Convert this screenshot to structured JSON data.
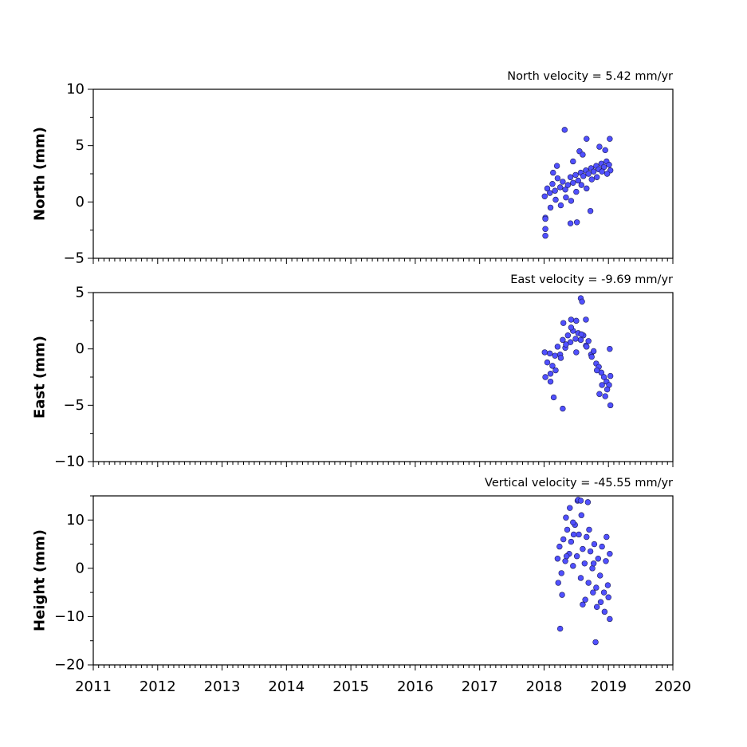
{
  "colors": {
    "marker_fill": "#5050ff",
    "marker_edge": "#1a1a55",
    "axes": "#000000"
  },
  "shared_x": {
    "xlim": [
      2011,
      2020
    ],
    "tick_labels": [
      "2011",
      "2012",
      "2013",
      "2014",
      "2015",
      "2016",
      "2017",
      "2018",
      "2019",
      "2020"
    ]
  },
  "chart_data": [
    {
      "type": "scatter",
      "title": "North velocity = 5.42 mm/yr",
      "ylabel": "North (mm)",
      "ylim": [
        -5,
        10
      ],
      "yticks": [
        -5,
        0,
        5,
        10
      ],
      "ytick_labels": [
        "−5",
        "0",
        "5",
        "10"
      ],
      "series": [
        {
          "x": [
            2018.01,
            2018.05,
            2018.09,
            2018.13,
            2018.17,
            2018.21,
            2018.25,
            2018.29,
            2018.33,
            2018.37,
            2018.41,
            2018.45,
            2018.49,
            2018.53,
            2018.57,
            2018.61,
            2018.65,
            2018.69,
            2018.73,
            2018.77,
            2018.81,
            2018.85,
            2018.89,
            2018.93,
            2018.97,
            2019.01,
            2019.03,
            2018.02,
            2018.1,
            2018.18,
            2018.26,
            2018.34,
            2018.42,
            2018.5,
            2018.58,
            2018.66,
            2018.74,
            2018.82,
            2018.9,
            2018.98,
            2018.32,
            2018.02,
            2018.02,
            2018.02,
            2018.41,
            2018.51,
            2018.72,
            2018.55,
            2018.66,
            2019.02,
            2018.2,
            2018.45,
            2018.6,
            2018.86,
            2018.95,
            2018.14
          ],
          "y": [
            0.5,
            1.2,
            0.8,
            1.6,
            1.0,
            2.1,
            1.3,
            1.8,
            1.1,
            1.5,
            2.2,
            1.7,
            2.4,
            1.9,
            2.6,
            2.3,
            2.8,
            2.5,
            3.0,
            2.7,
            3.2,
            2.9,
            3.4,
            3.1,
            3.6,
            3.3,
            2.8,
            -1.4,
            -0.5,
            0.2,
            -0.3,
            0.4,
            0.1,
            0.9,
            1.5,
            1.2,
            2.0,
            2.2,
            2.7,
            2.5,
            6.4,
            -3.0,
            -2.4,
            -1.5,
            -1.9,
            -1.8,
            -0.8,
            4.5,
            5.6,
            5.6,
            3.2,
            3.6,
            4.2,
            4.9,
            4.6,
            2.6
          ]
        }
      ]
    },
    {
      "type": "scatter",
      "title": "East velocity = -9.69 mm/yr",
      "ylabel": "East (mm)",
      "ylim": [
        -10,
        5
      ],
      "yticks": [
        -10,
        -5,
        0,
        5
      ],
      "ytick_labels": [
        "−10",
        "−5",
        "0",
        "5"
      ],
      "series": [
        {
          "x": [
            2018.01,
            2018.05,
            2018.09,
            2018.13,
            2018.17,
            2018.21,
            2018.25,
            2018.29,
            2018.33,
            2018.37,
            2018.41,
            2018.45,
            2018.49,
            2018.53,
            2018.57,
            2018.61,
            2018.65,
            2018.69,
            2018.73,
            2018.77,
            2018.81,
            2018.85,
            2018.89,
            2018.93,
            2018.97,
            2019.01,
            2019.03,
            2018.02,
            2018.1,
            2018.18,
            2018.26,
            2018.34,
            2018.42,
            2018.5,
            2018.58,
            2018.66,
            2018.74,
            2018.82,
            2018.9,
            2018.98,
            2018.57,
            2018.59,
            2018.29,
            2018.15,
            2019.03,
            2018.1,
            2018.86,
            2018.95,
            2019.02,
            2018.65,
            2018.42,
            2018.3,
            2018.5
          ],
          "y": [
            -0.3,
            -1.2,
            -0.4,
            -1.5,
            -0.6,
            0.2,
            -0.5,
            0.8,
            0.1,
            1.2,
            0.6,
            1.6,
            0.9,
            1.4,
            0.8,
            1.2,
            0.3,
            0.7,
            -0.5,
            -0.2,
            -1.3,
            -1.6,
            -2.1,
            -2.5,
            -2.9,
            -3.2,
            -2.4,
            -2.5,
            -2.9,
            -1.9,
            -0.8,
            0.4,
            1.9,
            2.5,
            1.3,
            0.2,
            -0.7,
            -1.9,
            -3.2,
            -3.6,
            4.5,
            4.2,
            -5.3,
            -4.3,
            -5.0,
            -2.2,
            -4.0,
            -4.2,
            0.0,
            2.6,
            2.6,
            2.3,
            -0.3
          ]
        }
      ]
    },
    {
      "type": "scatter",
      "title": "Vertical velocity = -45.55 mm/yr",
      "ylabel": "Height (mm)",
      "ylim": [
        -20,
        15
      ],
      "yticks": [
        -20,
        -10,
        0,
        10
      ],
      "ytick_labels": [
        "−20",
        "−10",
        "0",
        "10"
      ],
      "series": [
        {
          "x": [
            2018.21,
            2018.24,
            2018.27,
            2018.3,
            2018.33,
            2018.36,
            2018.39,
            2018.42,
            2018.45,
            2018.48,
            2018.51,
            2018.54,
            2018.57,
            2018.6,
            2018.63,
            2018.66,
            2018.69,
            2018.72,
            2018.75,
            2018.78,
            2018.81,
            2018.84,
            2018.87,
            2018.9,
            2018.93,
            2018.96,
            2018.99,
            2019.02,
            2018.22,
            2018.28,
            2018.34,
            2018.4,
            2018.46,
            2018.52,
            2018.58,
            2018.64,
            2018.7,
            2018.76,
            2018.82,
            2018.88,
            2018.94,
            2019.0,
            2018.53,
            2018.57,
            2018.68,
            2018.77,
            2018.25,
            2019.02,
            2018.6,
            2018.35,
            2018.45,
            2018.8,
            2018.97
          ],
          "y": [
            2.0,
            4.5,
            -1.0,
            6.0,
            1.5,
            8.0,
            3.0,
            5.5,
            0.5,
            9.0,
            2.5,
            7.0,
            -2.0,
            4.0,
            1.0,
            6.5,
            -3.0,
            3.5,
            0.0,
            5.0,
            -4.0,
            2.0,
            -1.5,
            4.5,
            -5.0,
            1.5,
            -3.5,
            3.0,
            -3.0,
            -5.5,
            10.5,
            12.5,
            7.0,
            14.0,
            11.0,
            -6.5,
            8.0,
            -5.0,
            -8.0,
            -7.0,
            -9.0,
            -6.0,
            14.2,
            14.0,
            13.7,
            1.0,
            -12.5,
            -10.5,
            -7.5,
            2.5,
            9.5,
            -15.3,
            6.5
          ]
        }
      ]
    }
  ]
}
